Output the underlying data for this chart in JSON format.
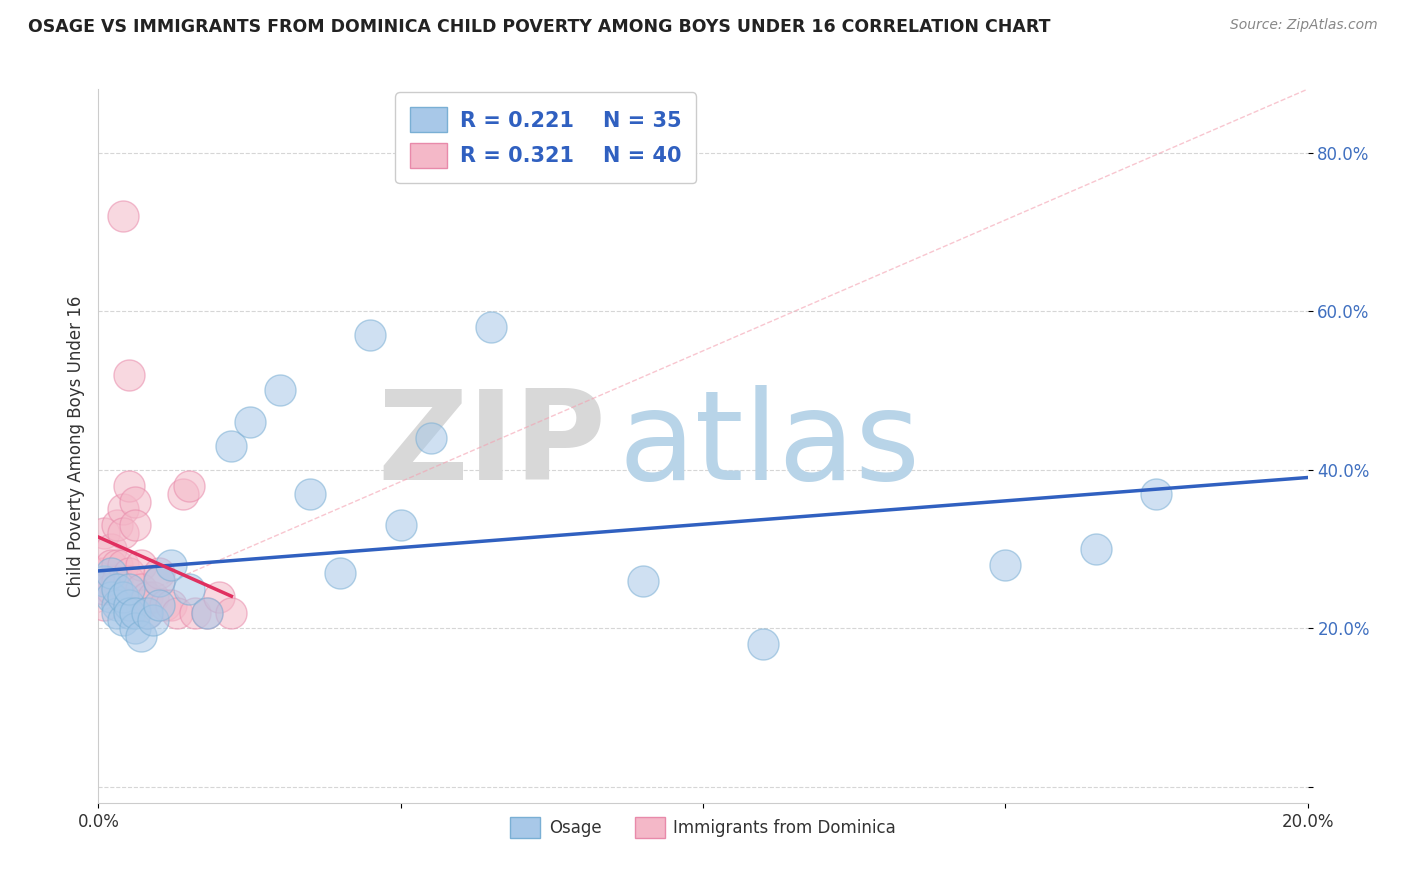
{
  "title": "OSAGE VS IMMIGRANTS FROM DOMINICA CHILD POVERTY AMONG BOYS UNDER 16 CORRELATION CHART",
  "source": "Source: ZipAtlas.com",
  "ylabel": "Child Poverty Among Boys Under 16",
  "xlim": [
    0.0,
    0.2
  ],
  "ylim": [
    -0.02,
    0.88
  ],
  "xticks": [
    0.0,
    0.05,
    0.1,
    0.15,
    0.2
  ],
  "xticklabels": [
    "0.0%",
    "",
    "",
    "",
    "20.0%"
  ],
  "yticks": [
    0.0,
    0.2,
    0.4,
    0.6,
    0.8
  ],
  "yticklabels": [
    "",
    "20.0%",
    "40.0%",
    "60.0%",
    "80.0%"
  ],
  "blue_color": "#a8c8e8",
  "pink_color": "#f4b8c8",
  "blue_edge_color": "#7aafd4",
  "pink_edge_color": "#e88aaa",
  "blue_line_color": "#3060c0",
  "pink_line_color": "#e03060",
  "r_blue": 0.221,
  "n_blue": 35,
  "r_pink": 0.321,
  "n_pink": 40,
  "legend_label_blue": "Osage",
  "legend_label_pink": "Immigrants from Dominica",
  "watermark_zip": "ZIP",
  "watermark_atlas": "atlas",
  "background_color": "#ffffff",
  "grid_color": "#cccccc",
  "osage_x": [
    0.001,
    0.002,
    0.002,
    0.003,
    0.003,
    0.003,
    0.004,
    0.004,
    0.005,
    0.005,
    0.005,
    0.006,
    0.006,
    0.007,
    0.008,
    0.009,
    0.01,
    0.01,
    0.012,
    0.015,
    0.018,
    0.022,
    0.025,
    0.03,
    0.035,
    0.04,
    0.045,
    0.05,
    0.055,
    0.065,
    0.09,
    0.11,
    0.15,
    0.165,
    0.175
  ],
  "osage_y": [
    0.26,
    0.24,
    0.27,
    0.23,
    0.22,
    0.25,
    0.21,
    0.24,
    0.23,
    0.22,
    0.25,
    0.2,
    0.22,
    0.19,
    0.22,
    0.21,
    0.26,
    0.23,
    0.28,
    0.25,
    0.22,
    0.43,
    0.46,
    0.5,
    0.37,
    0.27,
    0.57,
    0.33,
    0.44,
    0.58,
    0.26,
    0.18,
    0.28,
    0.3,
    0.37
  ],
  "dominica_x": [
    0.0,
    0.001,
    0.001,
    0.001,
    0.001,
    0.002,
    0.002,
    0.002,
    0.002,
    0.003,
    0.003,
    0.003,
    0.003,
    0.004,
    0.004,
    0.004,
    0.004,
    0.005,
    0.005,
    0.005,
    0.005,
    0.006,
    0.006,
    0.007,
    0.007,
    0.007,
    0.008,
    0.008,
    0.009,
    0.01,
    0.01,
    0.011,
    0.012,
    0.013,
    0.014,
    0.015,
    0.016,
    0.018,
    0.02,
    0.022
  ],
  "dominica_y": [
    0.27,
    0.32,
    0.27,
    0.23,
    0.25,
    0.3,
    0.28,
    0.26,
    0.25,
    0.33,
    0.28,
    0.26,
    0.25,
    0.35,
    0.32,
    0.28,
    0.72,
    0.52,
    0.38,
    0.27,
    0.26,
    0.36,
    0.33,
    0.28,
    0.25,
    0.23,
    0.24,
    0.22,
    0.24,
    0.27,
    0.26,
    0.23,
    0.23,
    0.22,
    0.37,
    0.38,
    0.22,
    0.22,
    0.24,
    0.22
  ]
}
